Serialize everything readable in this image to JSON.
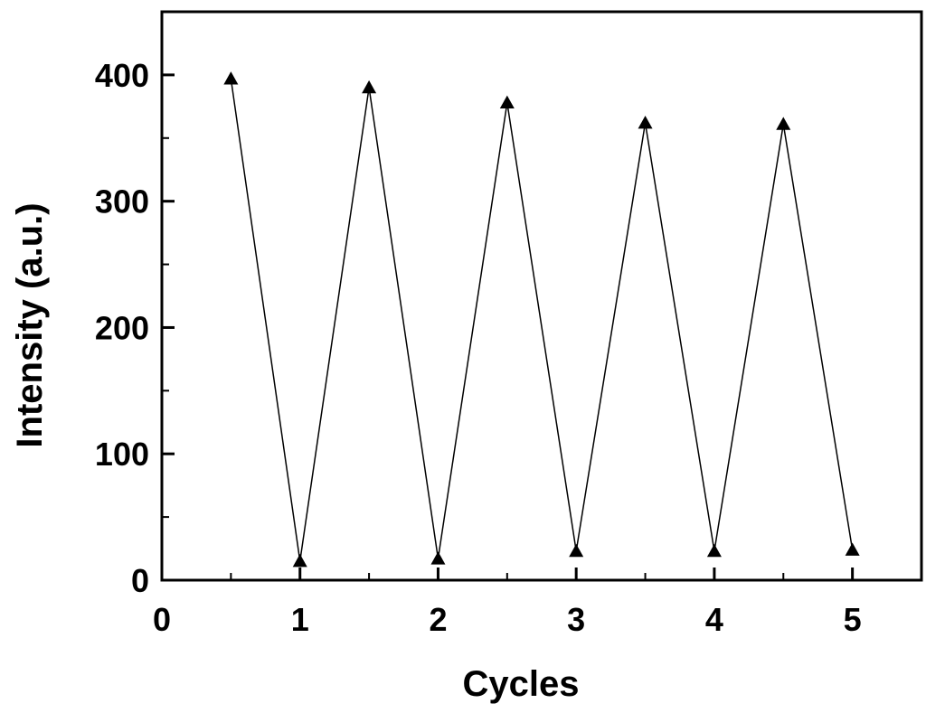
{
  "chart_data": {
    "type": "line",
    "xlabel": "Cycles",
    "ylabel": "Intensity (a.u.)",
    "xlim": [
      0,
      5.5
    ],
    "ylim": [
      0,
      450
    ],
    "x_ticks": [
      0,
      1,
      2,
      3,
      4,
      5
    ],
    "y_ticks": [
      0,
      100,
      200,
      300,
      400
    ],
    "grid": false,
    "legend": "none",
    "marker": "triangle",
    "color": "#000000",
    "series": [
      {
        "x": [
          0.5,
          1,
          1.5,
          2,
          2.5,
          3,
          3.5,
          4,
          4.5,
          5
        ],
        "values": [
          397,
          15,
          390,
          17,
          378,
          23,
          362,
          23,
          361,
          24
        ]
      }
    ]
  }
}
